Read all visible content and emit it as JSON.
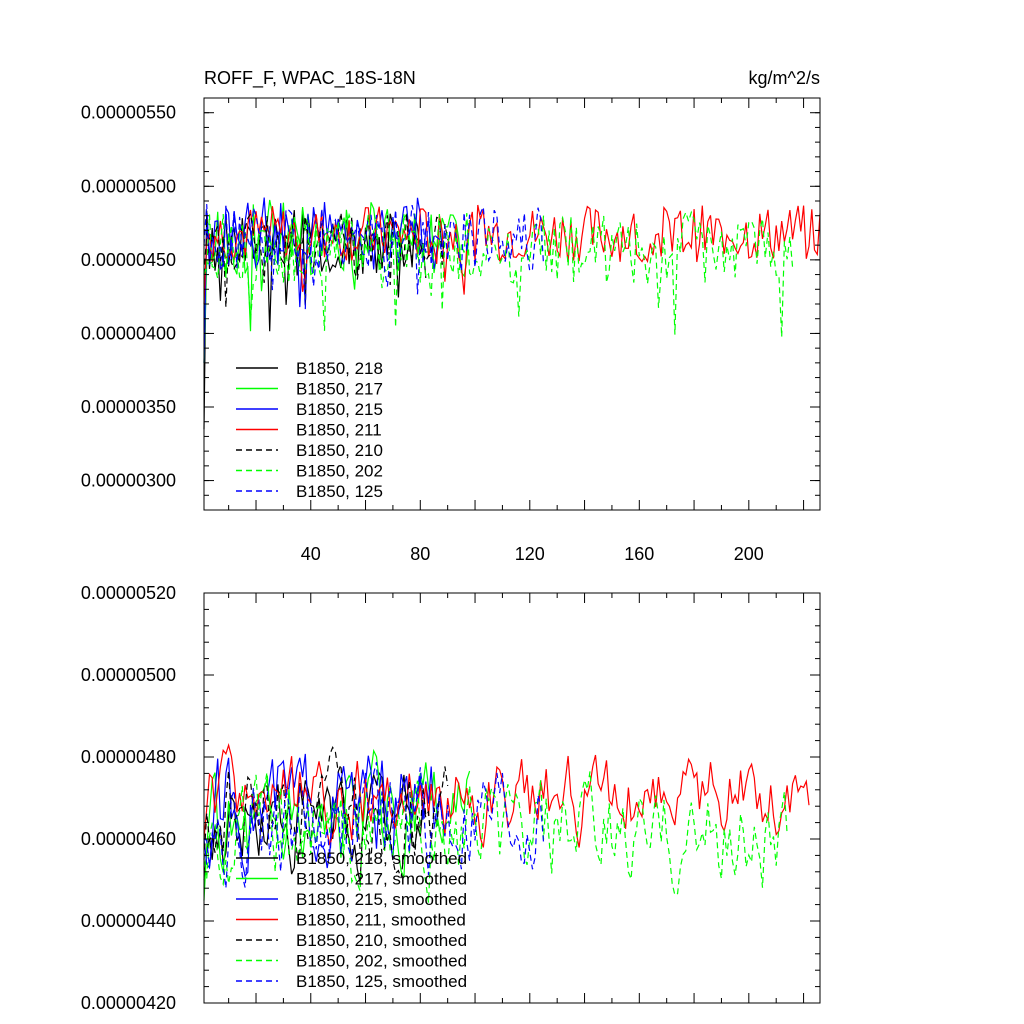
{
  "chart_data": [
    {
      "type": "line",
      "title": "ROFF_F, WPAC_18S-18N",
      "units": "kg/m^2/s",
      "xlim": [
        1,
        226
      ],
      "ylim": [
        2.8e-06,
        5.6e-06
      ],
      "ytick_values": [
        3e-06,
        3.5e-06,
        4e-06,
        4.5e-06,
        5e-06,
        5.5e-06
      ],
      "ytick_labels": [
        "0.00000300",
        "0.00000350",
        "0.00000400",
        "0.00000450",
        "0.00000500",
        "0.00000550"
      ],
      "xtick_values": [
        40,
        80,
        120,
        160,
        200
      ],
      "xtick_labels": [
        "40",
        "80",
        "120",
        "160",
        "200"
      ],
      "legend_position": "bottom-left",
      "series": [
        {
          "name": "B1850, 218",
          "color": "#000000",
          "dash": "solid",
          "length": 82,
          "mean": 4.62e-06,
          "amplitude": 3.5e-07,
          "seed": 218,
          "start": 3.35e-06
        },
        {
          "name": "B1850, 217",
          "color": "#00ff00",
          "dash": "solid",
          "length": 98,
          "mean": 4.65e-06,
          "amplitude": 4e-07,
          "seed": 217,
          "start": 3.8e-06
        },
        {
          "name": "B1850, 215",
          "color": "#0000ff",
          "dash": "solid",
          "length": 88,
          "mean": 4.68e-06,
          "amplitude": 3.8e-07,
          "seed": 215,
          "start": 3.8e-06
        },
        {
          "name": "B1850, 211",
          "color": "#ff0000",
          "dash": "solid",
          "length": 226,
          "mean": 4.68e-06,
          "amplitude": 3e-07,
          "seed": 211,
          "start": 4.2e-06
        },
        {
          "name": "B1850, 210",
          "color": "#000000",
          "dash": "dashed",
          "length": 90,
          "mean": 4.63e-06,
          "amplitude": 3e-07,
          "seed": 210,
          "start": 4.4e-06
        },
        {
          "name": "B1850, 202",
          "color": "#00ff00",
          "dash": "dashed",
          "length": 216,
          "mean": 4.58e-06,
          "amplitude": 3.8e-07,
          "seed": 202,
          "start": 4.4e-06
        },
        {
          "name": "B1850, 125",
          "color": "#0000ff",
          "dash": "dashed",
          "length": 125,
          "mean": 4.65e-06,
          "amplitude": 3.6e-07,
          "seed": 125,
          "start": 4.6e-06
        }
      ]
    },
    {
      "type": "line",
      "title": "",
      "xlim": [
        1,
        226
      ],
      "ylim": [
        4.2e-06,
        5.2e-06
      ],
      "ytick_values": [
        4.2e-06,
        4.4e-06,
        4.6e-06,
        4.8e-06,
        5e-06,
        5.2e-06
      ],
      "ytick_labels": [
        "0.00000420",
        "0.00000440",
        "0.00000460",
        "0.00000480",
        "0.00000500",
        "0.00000520"
      ],
      "xtick_values": [
        40,
        80,
        120,
        160,
        200
      ],
      "xtick_labels": [],
      "legend_position": "bottom-left",
      "series": [
        {
          "name": "B1850, 218, smoothed",
          "color": "#000000",
          "dash": "solid",
          "length": 82,
          "mean": 4.64e-06,
          "amplitude": 2.6e-07,
          "seed": 318,
          "start": 4.5e-06
        },
        {
          "name": "B1850, 217, smoothed",
          "color": "#00ff00",
          "dash": "solid",
          "length": 98,
          "mean": 4.65e-06,
          "amplitude": 3e-07,
          "seed": 317,
          "start": 4.45e-06
        },
        {
          "name": "B1850, 215, smoothed",
          "color": "#0000ff",
          "dash": "solid",
          "length": 88,
          "mean": 4.68e-06,
          "amplitude": 2.8e-07,
          "seed": 315,
          "start": 4.6e-06
        },
        {
          "name": "B1850, 211, smoothed",
          "color": "#ff0000",
          "dash": "solid",
          "length": 222,
          "mean": 4.7e-06,
          "amplitude": 2.2e-07,
          "seed": 311,
          "start": 4.6e-06
        },
        {
          "name": "B1850, 210, smoothed",
          "color": "#000000",
          "dash": "dashed",
          "length": 90,
          "mean": 4.66e-06,
          "amplitude": 2.6e-07,
          "seed": 310,
          "start": 4.55e-06
        },
        {
          "name": "B1850, 202, smoothed",
          "color": "#00ff00",
          "dash": "dashed",
          "length": 214,
          "mean": 4.6e-06,
          "amplitude": 2.8e-07,
          "seed": 302,
          "start": 4.55e-06
        },
        {
          "name": "B1850, 125, smoothed",
          "color": "#0000ff",
          "dash": "dashed",
          "length": 125,
          "mean": 4.65e-06,
          "amplitude": 3e-07,
          "seed": 325,
          "start": 4.6e-06
        }
      ]
    }
  ]
}
